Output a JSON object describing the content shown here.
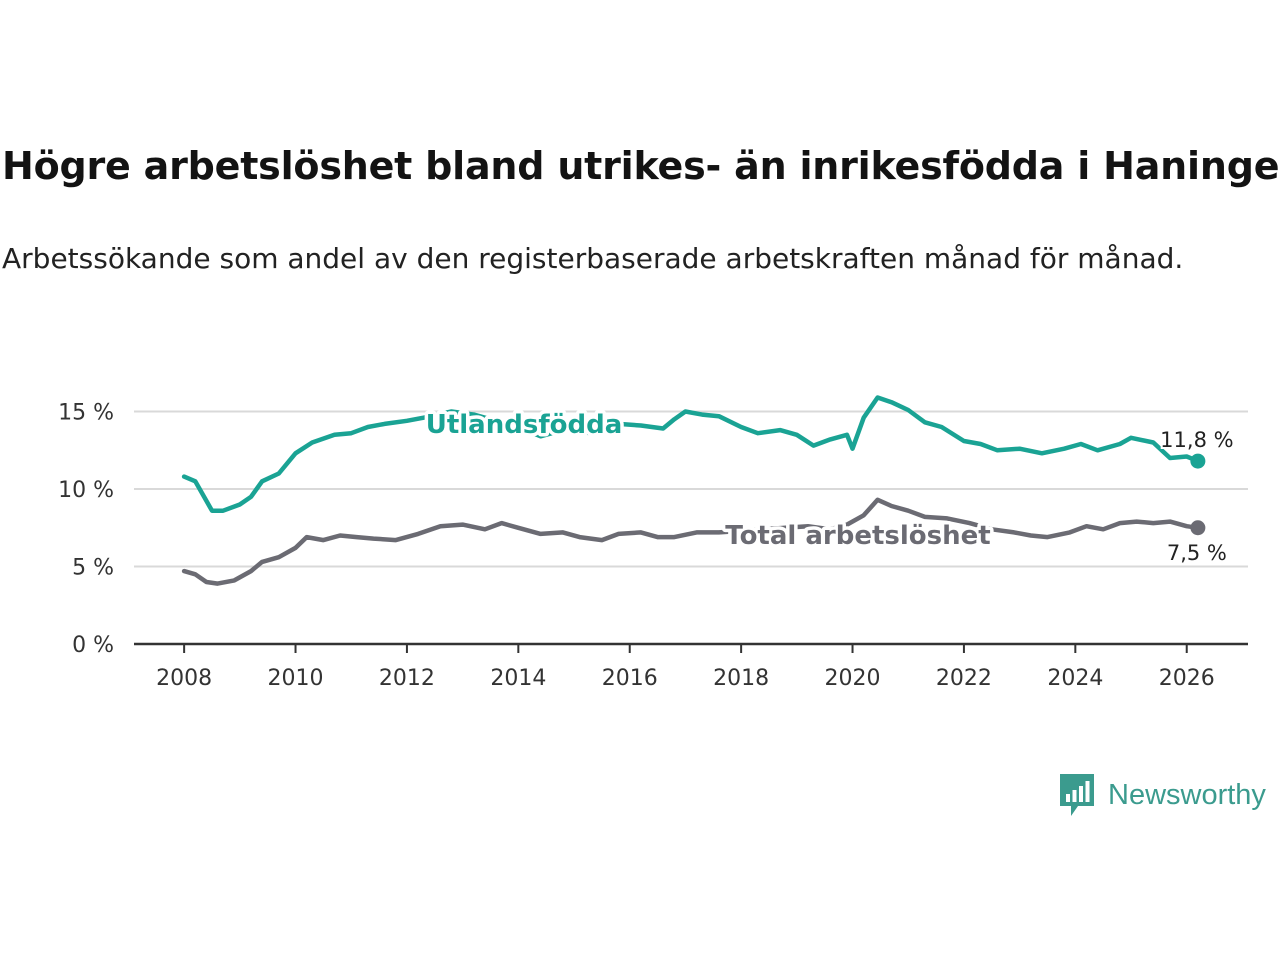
{
  "header": {
    "title": "Högre arbetslöshet bland utrikes- än inrikesfödda i Haninge",
    "subtitle": "Arbetssökande som andel av den registerbaserade arbetskraften månad för månad."
  },
  "brand": {
    "name": "Newsworthy"
  },
  "colors": {
    "foreign": "#1aa394",
    "total": "#6b6b73",
    "grid": "#d9d9d9",
    "axis": "#333333",
    "brand": "#3b9b8e"
  },
  "chart_data": {
    "type": "line",
    "title": "Högre arbetslöshet bland utrikes- än inrikesfödda i Haninge",
    "xlabel": "",
    "ylabel": "",
    "xlim": [
      2007.1,
      2027.1
    ],
    "ylim": [
      0,
      16
    ],
    "y_ticks": [
      0,
      5,
      10,
      15
    ],
    "y_tick_labels": [
      "0 %",
      "5 %",
      "10 %",
      "15 %"
    ],
    "x_ticks": [
      2008,
      2010,
      2012,
      2014,
      2016,
      2018,
      2020,
      2022,
      2024,
      2026
    ],
    "x_tick_labels": [
      "2008",
      "2010",
      "2012",
      "2014",
      "2016",
      "2018",
      "2020",
      "2022",
      "2024",
      "2026"
    ],
    "grid": true,
    "series": [
      {
        "name": "Utlandsfödda",
        "end_label": "11,8 %",
        "points": [
          [
            2008.0,
            10.8
          ],
          [
            2008.2,
            10.5
          ],
          [
            2008.5,
            8.6
          ],
          [
            2008.7,
            8.6
          ],
          [
            2009.0,
            9.0
          ],
          [
            2009.2,
            9.5
          ],
          [
            2009.4,
            10.5
          ],
          [
            2009.7,
            11.0
          ],
          [
            2010.0,
            12.3
          ],
          [
            2010.3,
            13.0
          ],
          [
            2010.7,
            13.5
          ],
          [
            2011.0,
            13.6
          ],
          [
            2011.3,
            14.0
          ],
          [
            2011.6,
            14.2
          ],
          [
            2012.0,
            14.4
          ],
          [
            2012.3,
            14.6
          ],
          [
            2012.8,
            15.0
          ],
          [
            2013.2,
            14.8
          ],
          [
            2013.6,
            14.4
          ],
          [
            2014.0,
            14.0
          ],
          [
            2014.4,
            13.4
          ],
          [
            2014.8,
            13.8
          ],
          [
            2015.3,
            13.6
          ],
          [
            2015.8,
            14.2
          ],
          [
            2016.2,
            14.1
          ],
          [
            2016.6,
            13.9
          ],
          [
            2016.8,
            14.5
          ],
          [
            2017.0,
            15.0
          ],
          [
            2017.3,
            14.8
          ],
          [
            2017.6,
            14.7
          ],
          [
            2018.0,
            14.0
          ],
          [
            2018.3,
            13.6
          ],
          [
            2018.7,
            13.8
          ],
          [
            2019.0,
            13.5
          ],
          [
            2019.3,
            12.8
          ],
          [
            2019.6,
            13.2
          ],
          [
            2019.9,
            13.5
          ],
          [
            2020.0,
            12.6
          ],
          [
            2020.2,
            14.6
          ],
          [
            2020.45,
            15.9
          ],
          [
            2020.7,
            15.6
          ],
          [
            2021.0,
            15.1
          ],
          [
            2021.3,
            14.3
          ],
          [
            2021.6,
            14.0
          ],
          [
            2022.0,
            13.1
          ],
          [
            2022.3,
            12.9
          ],
          [
            2022.6,
            12.5
          ],
          [
            2023.0,
            12.6
          ],
          [
            2023.4,
            12.3
          ],
          [
            2023.8,
            12.6
          ],
          [
            2024.1,
            12.9
          ],
          [
            2024.4,
            12.5
          ],
          [
            2024.8,
            12.9
          ],
          [
            2025.0,
            13.3
          ],
          [
            2025.4,
            13.0
          ],
          [
            2025.7,
            12.0
          ],
          [
            2026.0,
            12.1
          ],
          [
            2026.2,
            11.8
          ]
        ]
      },
      {
        "name": "Total arbetslöshet",
        "end_label": "7,5 %",
        "points": [
          [
            2008.0,
            4.7
          ],
          [
            2008.2,
            4.5
          ],
          [
            2008.4,
            4.0
          ],
          [
            2008.6,
            3.9
          ],
          [
            2008.9,
            4.1
          ],
          [
            2009.2,
            4.7
          ],
          [
            2009.4,
            5.3
          ],
          [
            2009.7,
            5.6
          ],
          [
            2010.0,
            6.2
          ],
          [
            2010.2,
            6.9
          ],
          [
            2010.5,
            6.7
          ],
          [
            2010.8,
            7.0
          ],
          [
            2011.1,
            6.9
          ],
          [
            2011.4,
            6.8
          ],
          [
            2011.8,
            6.7
          ],
          [
            2012.2,
            7.1
          ],
          [
            2012.6,
            7.6
          ],
          [
            2013.0,
            7.7
          ],
          [
            2013.4,
            7.4
          ],
          [
            2013.7,
            7.8
          ],
          [
            2014.0,
            7.5
          ],
          [
            2014.4,
            7.1
          ],
          [
            2014.8,
            7.2
          ],
          [
            2015.1,
            6.9
          ],
          [
            2015.5,
            6.7
          ],
          [
            2015.8,
            7.1
          ],
          [
            2016.2,
            7.2
          ],
          [
            2016.5,
            6.9
          ],
          [
            2016.8,
            6.9
          ],
          [
            2017.2,
            7.2
          ],
          [
            2017.6,
            7.2
          ],
          [
            2018.0,
            7.3
          ],
          [
            2018.4,
            7.4
          ],
          [
            2018.8,
            7.5
          ],
          [
            2019.2,
            7.6
          ],
          [
            2019.6,
            7.4
          ],
          [
            2019.9,
            7.7
          ],
          [
            2020.2,
            8.3
          ],
          [
            2020.45,
            9.3
          ],
          [
            2020.7,
            8.9
          ],
          [
            2021.0,
            8.6
          ],
          [
            2021.3,
            8.2
          ],
          [
            2021.7,
            8.1
          ],
          [
            2022.1,
            7.8
          ],
          [
            2022.5,
            7.4
          ],
          [
            2022.9,
            7.2
          ],
          [
            2023.2,
            7.0
          ],
          [
            2023.5,
            6.9
          ],
          [
            2023.9,
            7.2
          ],
          [
            2024.2,
            7.6
          ],
          [
            2024.5,
            7.4
          ],
          [
            2024.8,
            7.8
          ],
          [
            2025.1,
            7.9
          ],
          [
            2025.4,
            7.8
          ],
          [
            2025.7,
            7.9
          ],
          [
            2026.0,
            7.6
          ],
          [
            2026.2,
            7.5
          ]
        ]
      }
    ]
  }
}
